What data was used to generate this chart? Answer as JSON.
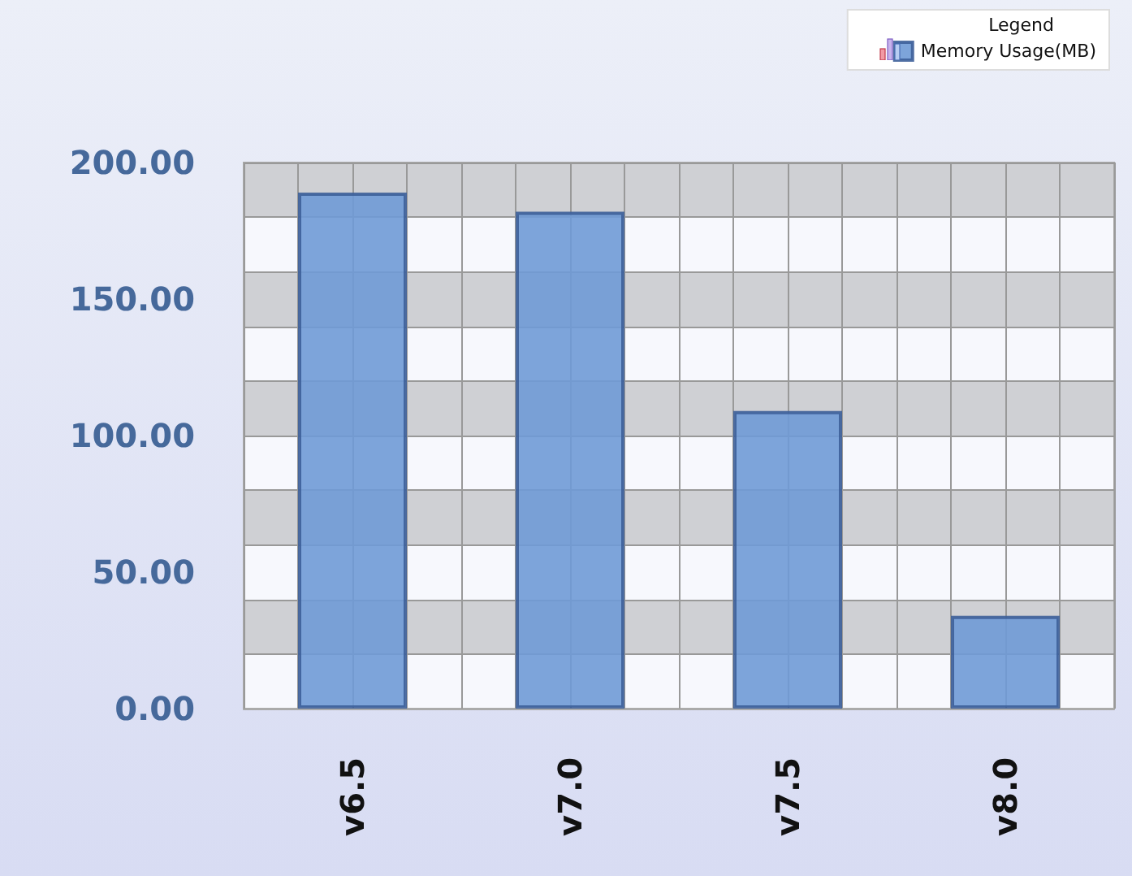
{
  "chart_data": {
    "type": "bar",
    "legend_title": "Legend",
    "categories": [
      "v6.5",
      "v7.0",
      "v7.5",
      "v8.0"
    ],
    "series": [
      {
        "name": "Memory Usage(MB)",
        "color": "#6f9ad6",
        "values": [
          189,
          182,
          109,
          34
        ]
      }
    ],
    "ylim": [
      0,
      200
    ],
    "yticks": [
      {
        "value": 0,
        "label": "0.00"
      },
      {
        "value": 50,
        "label": "50.00"
      },
      {
        "value": 100,
        "label": "100.00"
      },
      {
        "value": 150,
        "label": "150.00"
      },
      {
        "value": 200,
        "label": "200.00"
      }
    ],
    "grid": true,
    "legend": "top right"
  }
}
